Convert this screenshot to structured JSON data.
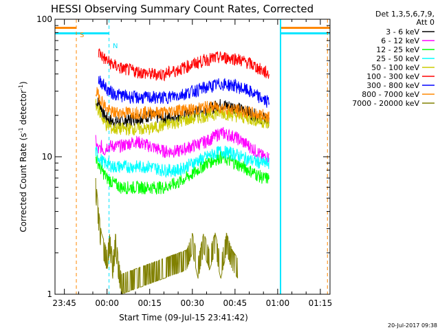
{
  "colors": {
    "background": "#ffffff",
    "axes": "#000000",
    "s_marker": "#ff8800",
    "n_marker": "#00e5ff"
  },
  "chart_data": {
    "type": "line",
    "title": "HESSI Observing Summary Count Rates, Corrected",
    "xlabel": "Start Time (09-Jul-15 23:41:42)",
    "ylabel_main": "Corrected Count Rate (s",
    "ylabel_sup": "-1",
    "ylabel_end": " detector",
    "ylabel_end2": ")",
    "y_scale": "log",
    "ylim": [
      1,
      100
    ],
    "y_ticks": [
      {
        "value": 1,
        "label": "1"
      },
      {
        "value": 10,
        "label": "10"
      },
      {
        "value": 100,
        "label": "100"
      }
    ],
    "xlim_min": [
      -18.3,
      78.4
    ],
    "x_ticks": [
      {
        "value": -15,
        "label": "23:45"
      },
      {
        "value": 0,
        "label": "00:00"
      },
      {
        "value": 15,
        "label": "00:15"
      },
      {
        "value": 30,
        "label": "00:30"
      },
      {
        "value": 45,
        "label": "00:45"
      },
      {
        "value": 60,
        "label": "01:00"
      },
      {
        "value": 75,
        "label": "01:15"
      }
    ],
    "x_minor_step_min": 5,
    "legend_placement": "top-right (outside plot)",
    "legend_title": [
      "Det 1,3,5,6,7,9,",
      "Att 0"
    ],
    "series": [
      {
        "name": "3 - 6 keV",
        "color": "#000000",
        "x": [
          -4,
          -3,
          -2,
          -1,
          0,
          2,
          5,
          10,
          15,
          20,
          25,
          30,
          35,
          40,
          45,
          50,
          55,
          57
        ],
        "y": [
          24,
          25,
          23,
          20,
          19,
          18,
          18,
          19,
          20,
          19,
          20,
          21,
          22,
          24,
          23,
          21,
          19,
          18
        ]
      },
      {
        "name": "6 - 12 keV",
        "color": "#ff00ff",
        "x": [
          -4,
          -3,
          -2,
          -1,
          0,
          2,
          5,
          10,
          15,
          20,
          25,
          30,
          35,
          40,
          45,
          50,
          55,
          57
        ],
        "y": [
          13,
          11,
          12,
          11,
          12,
          12,
          12,
          13,
          12,
          11,
          11,
          12,
          13,
          15,
          14,
          12,
          10,
          10
        ]
      },
      {
        "name": "12 - 25 keV",
        "color": "#00ff00",
        "x": [
          -4,
          -3,
          -2,
          -1,
          0,
          2,
          5,
          10,
          15,
          20,
          25,
          30,
          35,
          40,
          45,
          50,
          55,
          57
        ],
        "y": [
          10,
          9,
          8,
          7.5,
          7,
          6.5,
          6,
          6,
          6,
          6,
          6.5,
          7.5,
          9,
          10,
          9,
          8,
          7,
          7
        ]
      },
      {
        "name": "25 - 50 keV",
        "color": "#00ffff",
        "x": [
          -4,
          -3,
          -2,
          -1,
          0,
          2,
          5,
          10,
          15,
          20,
          25,
          30,
          35,
          40,
          45,
          50,
          55,
          57
        ],
        "y": [
          11,
          10,
          9.5,
          9,
          9,
          8.5,
          8.5,
          8.5,
          8.5,
          8,
          8,
          9,
          10,
          11,
          10.5,
          9.5,
          9,
          9
        ]
      },
      {
        "name": "50 - 100 keV",
        "color": "#cccc00",
        "x": [
          -4,
          -3,
          -2,
          -1,
          0,
          2,
          5,
          10,
          15,
          20,
          25,
          30,
          35,
          40,
          45,
          50,
          55,
          57
        ],
        "y": [
          24,
          22,
          20,
          18,
          17,
          16,
          16,
          16,
          16,
          17,
          18,
          19,
          20,
          21,
          20,
          19,
          18,
          17
        ]
      },
      {
        "name": "100 - 300 keV",
        "color": "#ff0000",
        "x": [
          -3,
          -2,
          -1,
          0,
          2,
          5,
          10,
          15,
          20,
          25,
          30,
          35,
          40,
          45,
          50,
          55,
          57
        ],
        "y": [
          58,
          55,
          52,
          50,
          47,
          44,
          42,
          40,
          40,
          43,
          47,
          51,
          53,
          52,
          48,
          42,
          40
        ]
      },
      {
        "name": "300 - 800 keV",
        "color": "#0000ff",
        "x": [
          -3,
          -2,
          -1,
          0,
          2,
          5,
          10,
          15,
          20,
          25,
          30,
          35,
          40,
          45,
          50,
          55,
          57
        ],
        "y": [
          36,
          35,
          33,
          31,
          29,
          28,
          27,
          27,
          27,
          28,
          30,
          32,
          34,
          33,
          30,
          26,
          25
        ]
      },
      {
        "name": "800 - 7000 keV",
        "color": "#ff8800",
        "x": [
          -4,
          -3,
          -2,
          -1,
          0,
          2,
          5,
          10,
          15,
          20,
          25,
          30,
          35,
          40,
          45,
          50,
          55,
          57
        ],
        "y": [
          30,
          28,
          26,
          24,
          22,
          21,
          21,
          21,
          21,
          21,
          22,
          22,
          23,
          23,
          22,
          21,
          20,
          20
        ]
      },
      {
        "name": "7000 - 20000 keV",
        "color": "#808000",
        "x": [
          -4,
          -3,
          -2,
          0,
          1,
          2,
          3,
          4,
          5,
          28,
          30,
          32,
          34,
          36,
          38,
          40,
          42,
          44,
          46
        ],
        "y": [
          5,
          3,
          2,
          1.5,
          2,
          1.3,
          2,
          1.3,
          1,
          1.5,
          2,
          1.3,
          2,
          1.5,
          2,
          1.3,
          2,
          1.5,
          1.3
        ]
      }
    ],
    "annotations": [
      {
        "text": "S",
        "x": -9.6,
        "y_frac": 0.96,
        "color": "#ff8800"
      },
      {
        "text": "N",
        "x": 2.0,
        "y_frac": 0.92,
        "color": "#00e5ff"
      }
    ],
    "attenuator_bars": {
      "s_bars": [
        [
          -18.3,
          -10.8
        ],
        [
          61.0,
          78.4
        ]
      ],
      "n_bars": [
        [
          -18.3,
          0.7
        ],
        [
          61.0,
          78.4
        ]
      ],
      "s_vlines": [
        -10.8,
        77.5
      ],
      "n_vlines": [
        0.7,
        61.0
      ]
    }
  },
  "timestamp": "20-Jul-2017 09:38"
}
